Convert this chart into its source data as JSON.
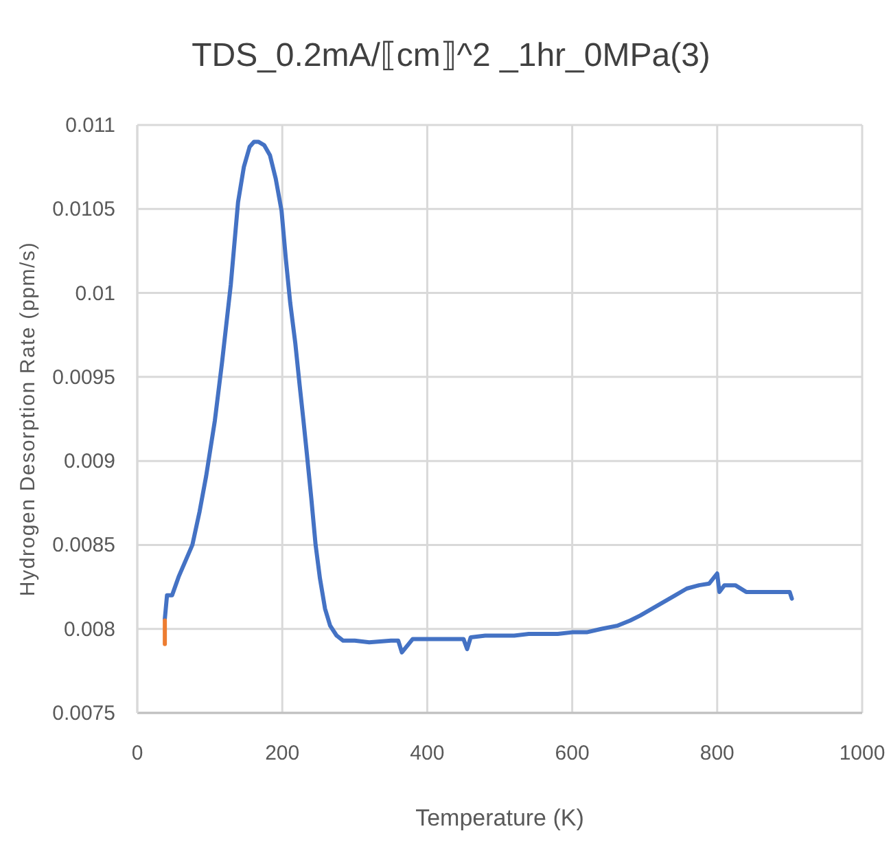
{
  "chart_data": {
    "type": "line",
    "title": "TDS_0.2mA/⟦cm⟧^2 _1hr_0MPa(3)",
    "xlabel": "Temperature (K)",
    "ylabel": "Hydrogen Desorption Rate (ppm/s)",
    "xlim": [
      0,
      1000
    ],
    "xticks": [
      0,
      200,
      400,
      600,
      800,
      1000
    ],
    "ylim": [
      0.0075,
      0.011
    ],
    "yticks": [
      0.0075,
      0.008,
      0.0085,
      0.009,
      0.0095,
      0.01,
      0.0105,
      0.011
    ],
    "grid": true,
    "marker": "none",
    "line_style": "solid",
    "series": [
      {
        "color": "#4472c4",
        "x": [
          38,
          41,
          48,
          57,
          66,
          76,
          86,
          95,
          107,
          117,
          129,
          139,
          147,
          155,
          161,
          167,
          175,
          183,
          191,
          199,
          205,
          211,
          218,
          224,
          229,
          234,
          240,
          246,
          252,
          259,
          266,
          275,
          284,
          300,
          320,
          350,
          360,
          365,
          380,
          400,
          430,
          450,
          455,
          460,
          480,
          500,
          520,
          540,
          560,
          580,
          600,
          620,
          640,
          663,
          680,
          694,
          710,
          726,
          742,
          758,
          775,
          789,
          800,
          803,
          810,
          825,
          840,
          870,
          900,
          903
        ],
        "values": [
          0.00806,
          0.0082,
          0.0082,
          0.00831,
          0.0084,
          0.0085,
          0.0087,
          0.00891,
          0.00924,
          0.00959,
          0.01005,
          0.01054,
          0.01075,
          0.01087,
          0.0109,
          0.0109,
          0.01088,
          0.01082,
          0.01068,
          0.01049,
          0.0102,
          0.00994,
          0.0097,
          0.00945,
          0.00925,
          0.00904,
          0.00878,
          0.0085,
          0.0083,
          0.00812,
          0.00802,
          0.00796,
          0.00793,
          0.00793,
          0.00792,
          0.00793,
          0.00793,
          0.00786,
          0.00794,
          0.00794,
          0.00794,
          0.00794,
          0.00788,
          0.00795,
          0.00796,
          0.00796,
          0.00796,
          0.00797,
          0.00797,
          0.00797,
          0.00798,
          0.00798,
          0.008,
          0.00802,
          0.00805,
          0.00808,
          0.00812,
          0.00816,
          0.0082,
          0.00824,
          0.00826,
          0.00827,
          0.00833,
          0.00822,
          0.00826,
          0.00826,
          0.00822,
          0.00822,
          0.00822,
          0.00818
        ]
      },
      {
        "color": "#ed7d31",
        "x": [
          38,
          38
        ],
        "values": [
          0.00791,
          0.00805
        ]
      }
    ]
  }
}
